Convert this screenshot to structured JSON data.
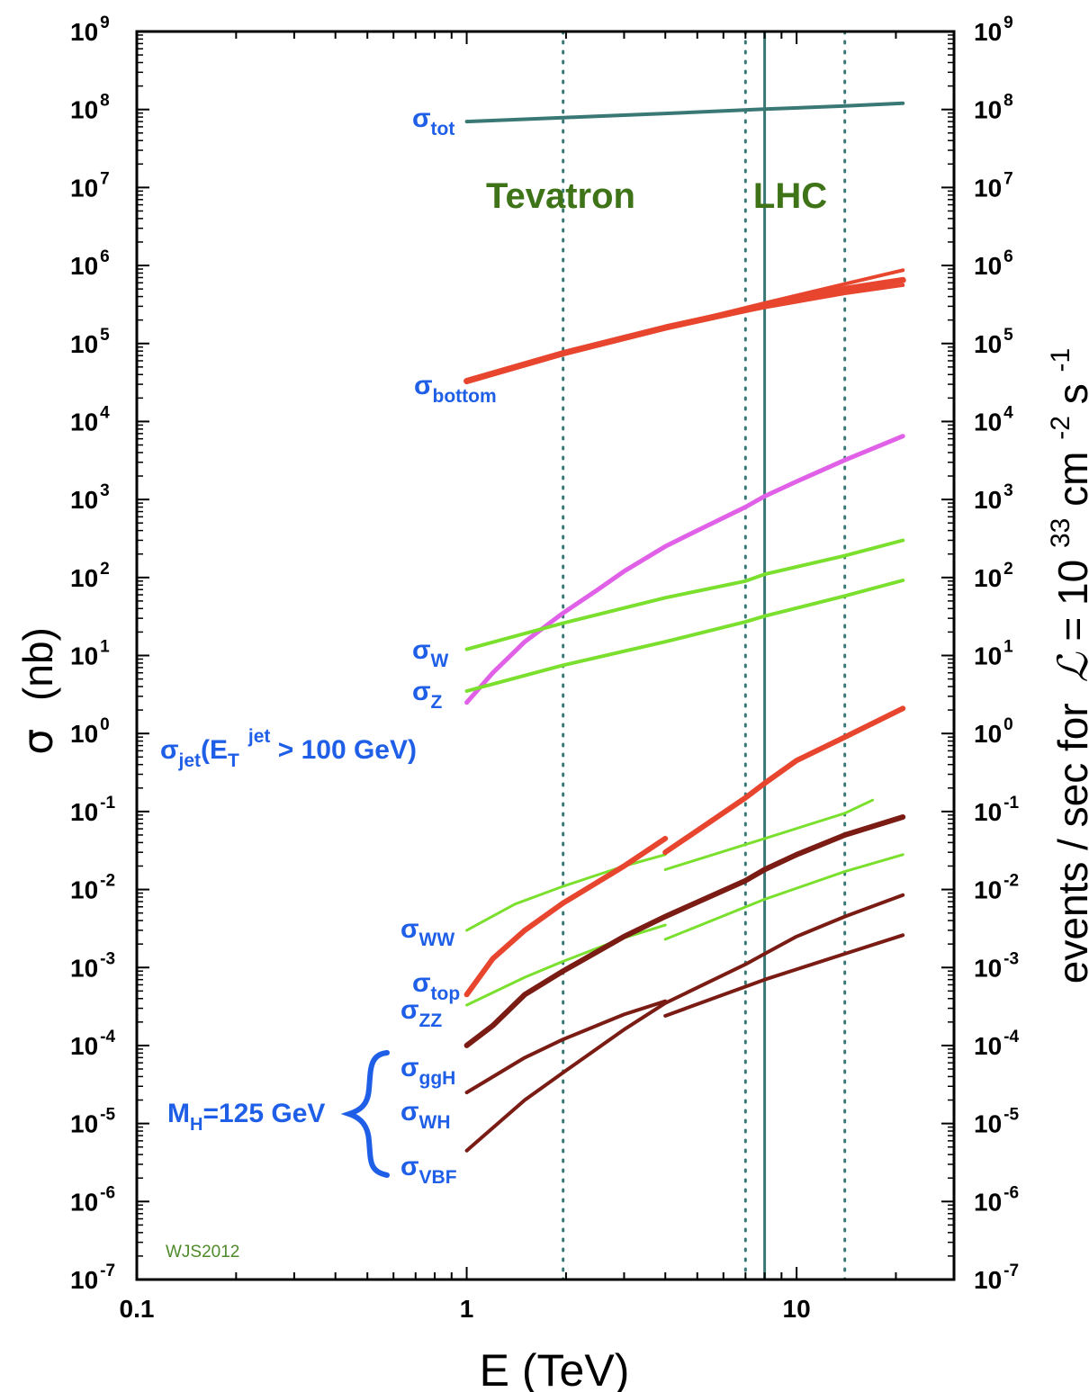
{
  "chart_data": {
    "type": "line",
    "x_scale": "log",
    "y_scale": "log",
    "xlim": [
      0.1,
      30
    ],
    "ylim": [
      1e-07,
      1000000000.0
    ],
    "xlabel": {
      "main": "E  (TeV)"
    },
    "ylabel": {
      "sigma": "σ",
      "unit": "(nb)"
    },
    "y2label": {
      "main": "events / sec for",
      "L": "ℒ",
      "eq": " = 10",
      "exp33": "33",
      "cm": " cm",
      "expm2": "-2",
      "s": "s",
      "expm1": "-1"
    },
    "x_ticks": [
      {
        "value": 0.1,
        "label": "0.1"
      },
      {
        "value": 1,
        "label": "1"
      },
      {
        "value": 10,
        "label": "10"
      }
    ],
    "y_ticks": [
      {
        "exp": -7,
        "base": "10",
        "sup": "-7"
      },
      {
        "exp": -6,
        "base": "10",
        "sup": "-6"
      },
      {
        "exp": -5,
        "base": "10",
        "sup": "-5"
      },
      {
        "exp": -4,
        "base": "10",
        "sup": "-4"
      },
      {
        "exp": -3,
        "base": "10",
        "sup": "-3"
      },
      {
        "exp": -2,
        "base": "10",
        "sup": "-2"
      },
      {
        "exp": -1,
        "base": "10",
        "sup": "-1"
      },
      {
        "exp": 0,
        "base": "10",
        "sup": "0"
      },
      {
        "exp": 1,
        "base": "10",
        "sup": "1"
      },
      {
        "exp": 2,
        "base": "10",
        "sup": "2"
      },
      {
        "exp": 3,
        "base": "10",
        "sup": "3"
      },
      {
        "exp": 4,
        "base": "10",
        "sup": "4"
      },
      {
        "exp": 5,
        "base": "10",
        "sup": "5"
      },
      {
        "exp": 6,
        "base": "10",
        "sup": "6"
      },
      {
        "exp": 7,
        "base": "10",
        "sup": "7"
      },
      {
        "exp": 8,
        "base": "10",
        "sup": "8"
      },
      {
        "exp": 9,
        "base": "10",
        "sup": "9"
      }
    ],
    "vertical_lines": [
      {
        "x": 1.96,
        "style": "dotted"
      },
      {
        "x": 7,
        "style": "dotted"
      },
      {
        "x": 8,
        "style": "solid"
      },
      {
        "x": 14,
        "style": "dotted"
      }
    ],
    "annotations": {
      "tevatron": "Tevatron",
      "lhc": "LHC",
      "credit": "WJS2012",
      "higgs_mass": {
        "main": "M",
        "sub": "H",
        "rest": "=125 GeV"
      }
    },
    "series": [
      {
        "name": "σ_tot",
        "label_main": "σ",
        "label_sub": "tot",
        "color": "#3a7876",
        "width": 4,
        "points": [
          [
            1,
            70000000.0
          ],
          [
            2,
            79000000.0
          ],
          [
            4,
            89000000.0
          ],
          [
            8,
            101000000.0
          ],
          [
            14,
            111000000.0
          ],
          [
            21,
            120000000.0
          ]
        ]
      },
      {
        "name": "σ_bottom",
        "label_main": "σ",
        "label_sub": "bottom",
        "color": "#e8452e",
        "width": 7,
        "points": [
          [
            1,
            33000.0
          ],
          [
            1.96,
            75000.0
          ],
          [
            4,
            160000.0
          ],
          [
            7,
            270000.0
          ],
          [
            8,
            310000.0
          ],
          [
            14,
            500000.0
          ],
          [
            21,
            650000.0
          ]
        ]
      },
      {
        "name": "",
        "color": "#e8452e",
        "width": 4,
        "points": [
          [
            4,
            160000.0
          ],
          [
            8,
            330000.0
          ],
          [
            14,
            580000.0
          ],
          [
            21,
            870000.0
          ]
        ]
      },
      {
        "name": "",
        "color": "#e8452e",
        "width": 4,
        "points": [
          [
            4,
            160000.0
          ],
          [
            8,
            290000.0
          ],
          [
            14,
            440000.0
          ],
          [
            21,
            560000.0
          ]
        ]
      },
      {
        "name": "σ_jet(E_T^jet > 100 GeV)",
        "label_main": "σ",
        "label_sub": "jet",
        "label_open": "(E",
        "label_sub2": "T",
        "label_sup": "jet",
        "label_close": " > 100 GeV)",
        "color": "#e060e8",
        "width": 5,
        "points": [
          [
            1,
            2.5
          ],
          [
            1.2,
            6
          ],
          [
            1.5,
            15
          ],
          [
            1.96,
            35
          ],
          [
            2.5,
            70
          ],
          [
            3,
            120
          ],
          [
            4,
            250
          ],
          [
            5,
            400
          ],
          [
            7,
            800
          ],
          [
            8,
            1100
          ],
          [
            10,
            1700
          ],
          [
            14,
            3200
          ],
          [
            21,
            6500
          ]
        ]
      },
      {
        "name": "σ_W",
        "label_main": "σ",
        "label_sub": "W",
        "color": "#7ae02d",
        "width": 4,
        "points": [
          [
            1,
            12
          ],
          [
            1.96,
            26
          ],
          [
            4,
            55
          ],
          [
            7,
            90
          ],
          [
            8,
            110
          ],
          [
            14,
            190
          ],
          [
            21,
            300
          ]
        ]
      },
      {
        "name": "σ_Z",
        "label_main": "σ",
        "label_sub": "Z",
        "color": "#7ae02d",
        "width": 4,
        "points": [
          [
            1,
            3.5
          ],
          [
            1.96,
            7.5
          ],
          [
            4,
            15
          ],
          [
            7,
            27
          ],
          [
            8,
            32
          ],
          [
            14,
            58
          ],
          [
            21,
            92
          ]
        ]
      },
      {
        "name": "σ_WW",
        "label_main": "σ",
        "label_sub": "WW",
        "color": "#7ae02d",
        "width": 3,
        "points": [
          [
            1,
            0.003
          ],
          [
            1.4,
            0.0065
          ],
          [
            1.96,
            0.011
          ],
          [
            3,
            0.02
          ],
          [
            4,
            0.028
          ]
        ]
      },
      {
        "name": "",
        "color": "#7ae02d",
        "width": 3,
        "points": [
          [
            4,
            0.018
          ],
          [
            8,
            0.045
          ],
          [
            14,
            0.095
          ],
          [
            17,
            0.14
          ]
        ]
      },
      {
        "name": "σ_top",
        "label_main": "σ",
        "label_sub": "top",
        "color": "#e8452e",
        "width": 6,
        "points": [
          [
            1,
            0.00045
          ],
          [
            1.2,
            0.0013
          ],
          [
            1.5,
            0.003
          ],
          [
            1.96,
            0.0067
          ],
          [
            3,
            0.02
          ],
          [
            4,
            0.045
          ]
        ]
      },
      {
        "name": "",
        "color": "#e8452e",
        "width": 6,
        "points": [
          [
            4,
            0.03
          ],
          [
            7,
            0.15
          ],
          [
            8,
            0.23
          ],
          [
            10,
            0.45
          ],
          [
            14,
            0.9
          ],
          [
            21,
            2.1
          ]
        ]
      },
      {
        "name": "σ_ZZ",
        "label_main": "σ",
        "label_sub": "ZZ",
        "color": "#7ae02d",
        "width": 3,
        "points": [
          [
            1,
            0.00033
          ],
          [
            1.5,
            0.00075
          ],
          [
            1.96,
            0.0012
          ],
          [
            3,
            0.0024
          ],
          [
            4,
            0.0035
          ]
        ]
      },
      {
        "name": "",
        "color": "#7ae02d",
        "width": 3,
        "points": [
          [
            4,
            0.0023
          ],
          [
            8,
            0.0075
          ],
          [
            14,
            0.017
          ],
          [
            21,
            0.028
          ]
        ]
      },
      {
        "name": "σ_ggH",
        "label_main": "σ",
        "label_sub": "ggH",
        "color": "#7a1c14",
        "width": 6,
        "points": [
          [
            1,
            0.0001
          ],
          [
            1.2,
            0.00018
          ],
          [
            1.5,
            0.00045
          ],
          [
            1.96,
            0.0009
          ],
          [
            3,
            0.0025
          ],
          [
            4,
            0.0045
          ],
          [
            7,
            0.013
          ],
          [
            8,
            0.018
          ],
          [
            10,
            0.028
          ],
          [
            14,
            0.05
          ],
          [
            21,
            0.085
          ]
        ]
      },
      {
        "name": "σ_WH",
        "label_main": "σ",
        "label_sub": "WH",
        "color": "#7a1c14",
        "width": 4,
        "points": [
          [
            1,
            2.5e-05
          ],
          [
            1.5,
            7e-05
          ],
          [
            1.96,
            0.00012
          ],
          [
            3,
            0.00025
          ],
          [
            4,
            0.00037
          ]
        ]
      },
      {
        "name": "",
        "color": "#7a1c14",
        "width": 4,
        "points": [
          [
            4,
            0.00024
          ],
          [
            8,
            0.0007
          ],
          [
            14,
            0.0015
          ],
          [
            21,
            0.0026
          ]
        ]
      },
      {
        "name": "σ_VBF",
        "label_main": "σ",
        "label_sub": "VBF",
        "color": "#7a1c14",
        "width": 4,
        "points": [
          [
            1,
            4.5e-06
          ],
          [
            1.5,
            2e-05
          ],
          [
            1.96,
            4.5e-05
          ],
          [
            3,
            0.00016
          ],
          [
            4,
            0.00035
          ],
          [
            7,
            0.0011
          ],
          [
            8,
            0.0015
          ],
          [
            10,
            0.0025
          ],
          [
            14,
            0.0045
          ],
          [
            21,
            0.0085
          ]
        ]
      }
    ]
  }
}
